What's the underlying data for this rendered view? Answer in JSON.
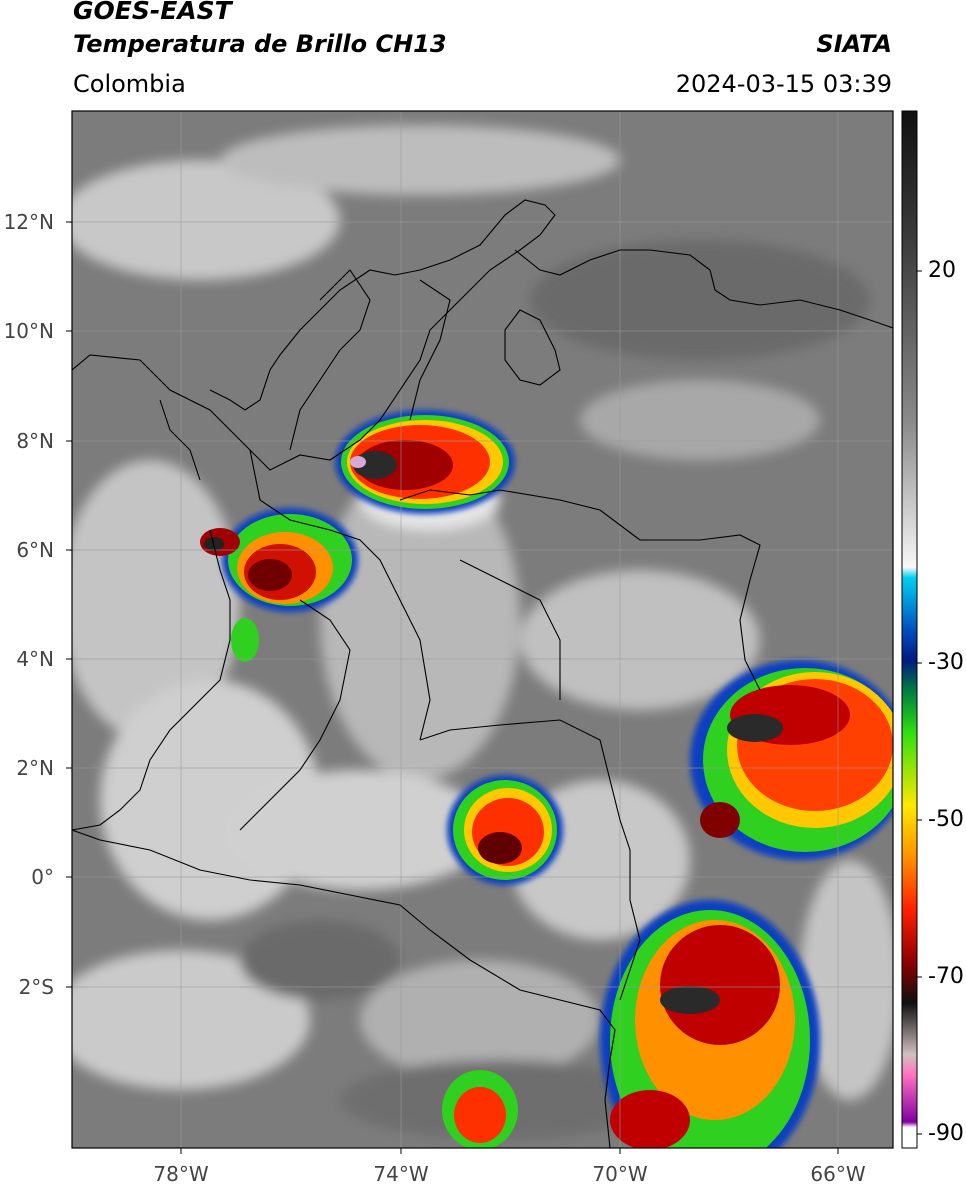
{
  "header": {
    "satellite": "GOES-EAST",
    "product": "Temperatura de Brillo CH13",
    "region": "Colombia",
    "agency": "SIATA",
    "timestamp": "2024-03-15 03:39"
  },
  "map": {
    "lat_ticks": [
      {
        "value": 12,
        "label": "12°N"
      },
      {
        "value": 10,
        "label": "10°N"
      },
      {
        "value": 8,
        "label": "8°N"
      },
      {
        "value": 6,
        "label": "6°N"
      },
      {
        "value": 4,
        "label": "4°N"
      },
      {
        "value": 2,
        "label": "2°N"
      },
      {
        "value": 0,
        "label": "0°"
      },
      {
        "value": -2,
        "label": "2°S"
      }
    ],
    "lon_ticks": [
      {
        "value": -78,
        "label": "78°W"
      },
      {
        "value": -74,
        "label": "74°W"
      },
      {
        "value": -70,
        "label": "70°W"
      },
      {
        "value": -66,
        "label": "66°W"
      }
    ],
    "extent": {
      "lon": [
        -80.0,
        -65.0
      ],
      "lat": [
        -5.0,
        14.0
      ]
    }
  },
  "colorbar": {
    "range": [
      -92,
      35
    ],
    "ticks": [
      {
        "value": 20,
        "label": "20"
      },
      {
        "value": -30,
        "label": "-30"
      },
      {
        "value": -50,
        "label": "-50"
      },
      {
        "value": -70,
        "label": "-70"
      },
      {
        "value": -90,
        "label": "-90"
      }
    ]
  }
}
